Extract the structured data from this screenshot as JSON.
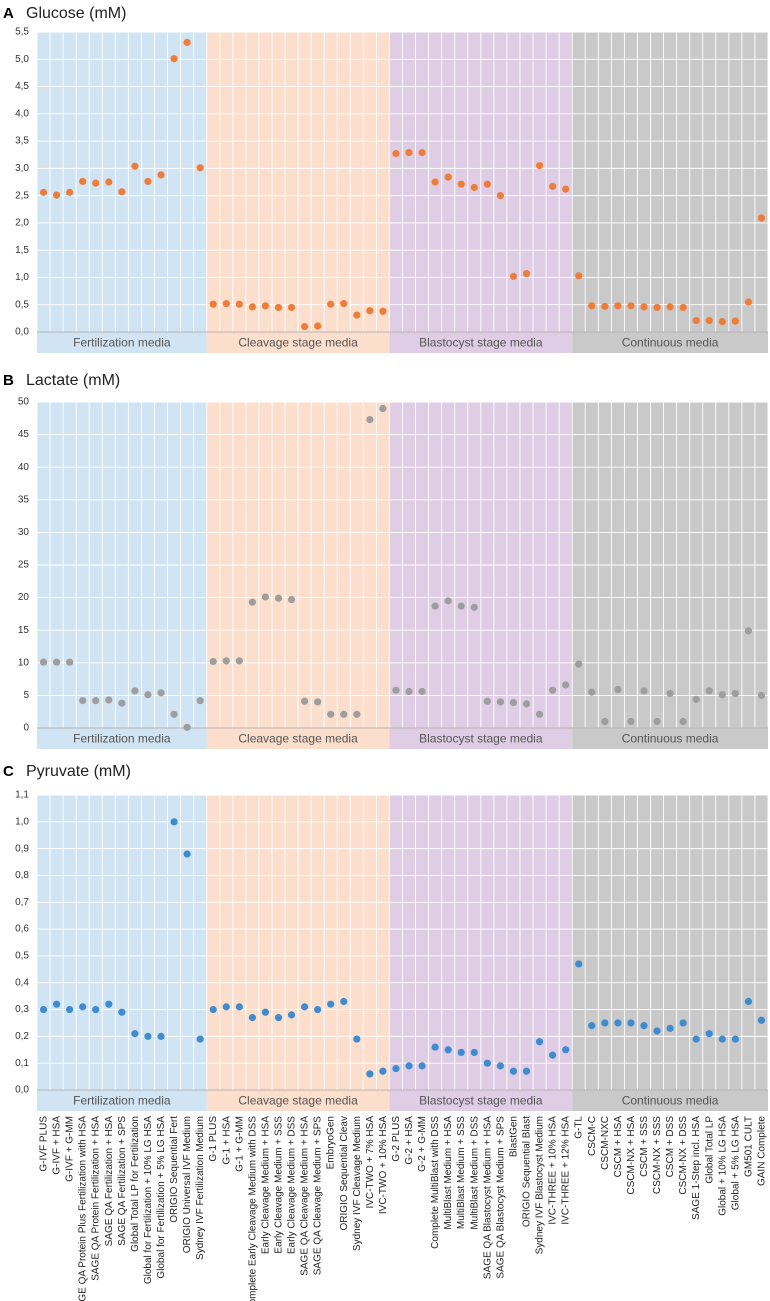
{
  "colors": {
    "band_fertilization": "#d1e4f3",
    "band_cleavage": "#fbdfcc",
    "band_blastocyst": "#dfcde5",
    "band_continuous": "#c9c9c9",
    "grid": "#ffffff",
    "axis": "#b5b5b5",
    "glucose_marker": "#ef7d3a",
    "lactate_marker": "#9e9e9e",
    "pyruvate_marker": "#3f8bd0"
  },
  "groups": [
    {
      "label": "Fertilization media",
      "count": 13,
      "color": "band_fertilization"
    },
    {
      "label": "Cleavage stage media",
      "count": 14,
      "color": "band_cleavage"
    },
    {
      "label": "Blastocyst stage media",
      "count": 14,
      "color": "band_blastocyst"
    },
    {
      "label": "Continuous media",
      "count": 15,
      "color": "band_continuous"
    }
  ],
  "chart_data": [
    {
      "type": "scatter",
      "panel": "A",
      "title": "Glucose (mM)",
      "ylim": [
        0,
        5.5
      ],
      "yticks": [
        "0,0",
        "0,5",
        "1,0",
        "1,5",
        "2,0",
        "2,5",
        "3,0",
        "3,5",
        "4,0",
        "4,5",
        "5,0",
        "5,5"
      ],
      "grid": true,
      "series": [
        {
          "values": [
            2.56,
            2.51,
            2.56,
            2.76,
            2.73,
            2.75,
            2.57,
            3.04,
            2.76,
            2.88,
            5.01,
            5.31,
            3.01,
            0.51,
            0.52,
            0.51,
            0.46,
            0.48,
            0.45,
            0.45,
            0.1,
            0.11,
            0.51,
            0.52,
            0.31,
            0.39,
            0.38,
            3.27,
            3.29,
            3.29,
            2.75,
            2.84,
            2.71,
            2.65,
            2.71,
            2.5,
            1.02,
            1.07,
            3.05,
            2.67,
            2.62,
            1.03,
            0.48,
            0.47,
            0.48,
            0.48,
            0.46,
            0.45,
            0.46,
            0.45,
            0.21,
            0.21,
            0.19,
            0.2,
            0.55,
            2.09
          ]
        }
      ]
    },
    {
      "type": "scatter",
      "panel": "B",
      "title": "Lactate (mM)",
      "ylim": [
        0,
        50
      ],
      "yticks": [
        "0",
        "5",
        "10",
        "15",
        "20",
        "25",
        "30",
        "35",
        "40",
        "45",
        "50"
      ],
      "grid": true,
      "series": [
        {
          "values": [
            10.1,
            10.1,
            10.1,
            4.2,
            4.2,
            4.3,
            3.8,
            5.7,
            5.1,
            5.4,
            2.1,
            0.1,
            4.2,
            10.2,
            10.3,
            10.3,
            19.3,
            20.1,
            19.9,
            19.7,
            4.1,
            4.0,
            2.1,
            2.1,
            2.1,
            47.3,
            49.0,
            5.8,
            5.6,
            5.6,
            18.7,
            19.5,
            18.7,
            18.5,
            4.1,
            4.0,
            3.9,
            3.7,
            2.1,
            5.8,
            6.6,
            9.8,
            5.5,
            1.0,
            5.9,
            1.0,
            5.7,
            1.0,
            5.3,
            1.0,
            4.4,
            5.7,
            5.1,
            5.3,
            14.9,
            5.0
          ]
        }
      ]
    },
    {
      "type": "scatter",
      "panel": "C",
      "title": "Pyruvate (mM)",
      "ylim": [
        0,
        1.1
      ],
      "yticks": [
        "0,0",
        "0,1",
        "0,2",
        "0,3",
        "0,4",
        "0,5",
        "0,6",
        "0,7",
        "0,8",
        "0,9",
        "1,0",
        "1,1"
      ],
      "grid": true,
      "series": [
        {
          "values": [
            0.3,
            0.32,
            0.3,
            0.31,
            0.3,
            0.32,
            0.29,
            0.21,
            0.2,
            0.2,
            1.0,
            0.88,
            0.19,
            0.3,
            0.31,
            0.31,
            0.27,
            0.29,
            0.27,
            0.28,
            0.31,
            0.3,
            0.32,
            0.33,
            0.19,
            0.06,
            0.07,
            0.08,
            0.09,
            0.09,
            0.16,
            0.15,
            0.14,
            0.14,
            0.1,
            0.09,
            0.07,
            0.07,
            0.18,
            0.13,
            0.15,
            0.47,
            0.24,
            0.25,
            0.25,
            0.25,
            0.24,
            0.22,
            0.23,
            0.25,
            0.19,
            0.21,
            0.19,
            0.19,
            0.33,
            0.26
          ]
        }
      ]
    }
  ],
  "categories": [
    "G-IVF PLUS",
    "G-IVF + HSA",
    "G-IVF + G-MM",
    "SAGE QA Protein Plus Fertilization with HSA",
    "SAGE QA Protein Fertilization + HSA",
    "SAGE QA Fertilization + HSA",
    "SAGE QA Fertilization + SPS",
    "Global Total LP for Fertilization",
    "Global for Fertilization + 10% LG HSA",
    "Global for Fertilization + 5% LG HSA",
    "ORIGIO Sequential Fert",
    "ORIGIO Universal IVF Medium",
    "Sydney IVF Fertilization Medium",
    "G-1 PLUS",
    "G-1 + HSA",
    "G-1 + G-MM",
    "Complete Early Cleavage Medium with DSS",
    "Early Cleavage Medium + HSA",
    "Early Cleavage Medium + SSS",
    "Early Cleavage Medium + DSS",
    "SAGE QA Cleavage Medium + HSA",
    "SAGE QA Cleavage Medium + SPS",
    "EmbryoGen",
    "ORIGIO Sequential Cleav",
    "Sydney IVF Cleavage Medium",
    "IVC-TWO + 7% HSA",
    "IVC-TWO + 10% HSA",
    "G-2 PLUS",
    "G-2 + HSA",
    "G-2 + G-MM",
    "Complete MultiBlast with DSS",
    "MultiBlast Medium + HSA",
    "MultiBlast Medium + SSS",
    "MultiBlast Medium + DSS",
    "SAGE QA Blastocyst Medium + HSA",
    "SAGE QA Blastocyst Medium + SPS",
    "BlastGen",
    "ORIGIO Sequential Blast",
    "Sydney IVF Blastocyst Medium",
    "IVC-THREE + 10% HSA",
    "IVC-THREE + 12% HSA",
    "G-TL",
    "CSCM-C",
    "CSCM-NXC",
    "CSCM + HSA",
    "CSCM-NX + HSA",
    "CSCM + SSS",
    "CSCM-NX + SSS",
    "CSCM + DSS",
    "CSCM-NX + DSS",
    "SAGE 1-Step incl. HSA",
    "Global Total LP",
    "Global + 10% LG HSA",
    "Global + 5% LG HSA",
    "GM501 CULT",
    "GAIN Complete"
  ]
}
